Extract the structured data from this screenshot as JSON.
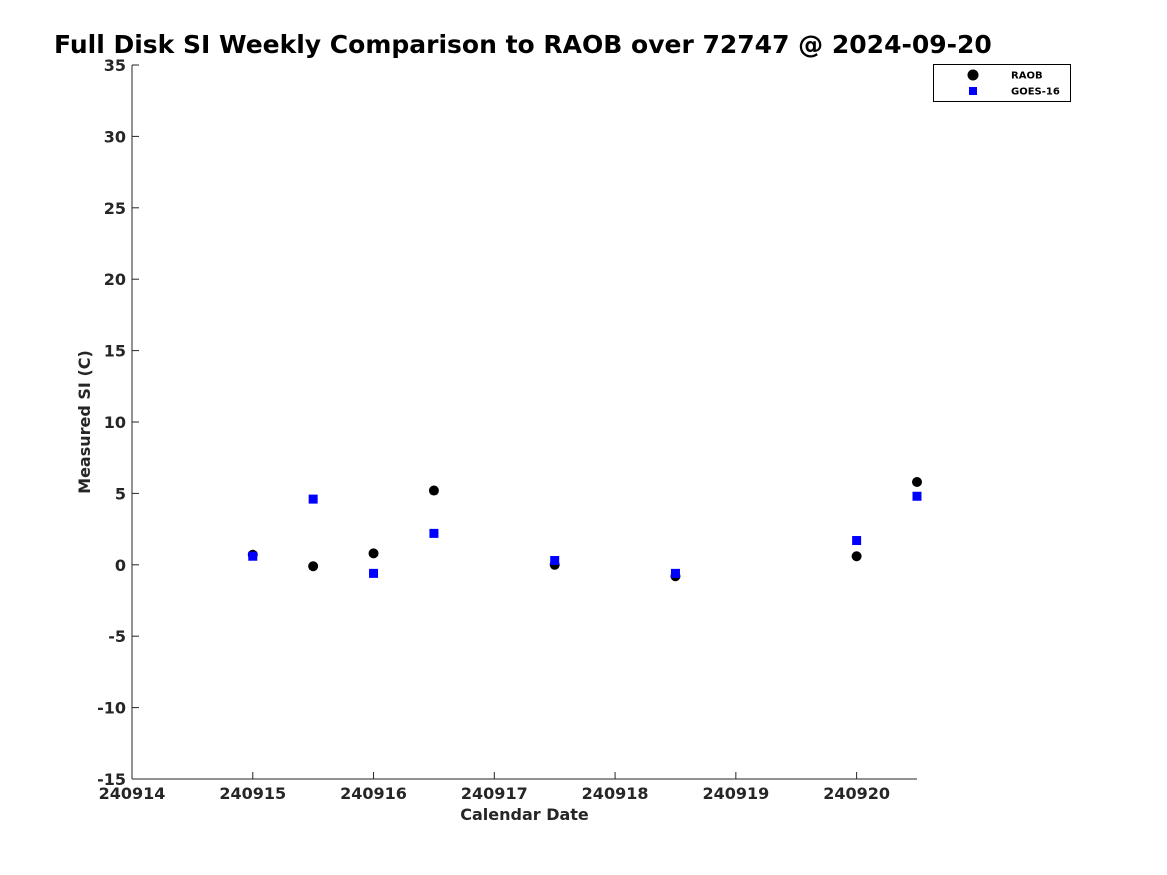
{
  "chart_data": {
    "type": "scatter",
    "title": "Full Disk SI Weekly Comparison to RAOB over 72747 @ 2024-09-20",
    "xlabel": "Calendar Date",
    "ylabel": "Measured SI (C)",
    "xlim": [
      240914,
      240920.5
    ],
    "ylim": [
      -15,
      35
    ],
    "x_ticks": [
      240914,
      240915,
      240916,
      240917,
      240918,
      240919,
      240920
    ],
    "x_tick_labels": [
      "240914",
      "240915",
      "240916",
      "240917",
      "240918",
      "240919",
      "240920"
    ],
    "y_ticks": [
      -15,
      -10,
      -5,
      0,
      5,
      10,
      15,
      20,
      25,
      30,
      35
    ],
    "y_tick_labels": [
      "-15",
      "-10",
      "-5",
      "0",
      "5",
      "10",
      "15",
      "20",
      "25",
      "30",
      "35"
    ],
    "grid": false,
    "legend_position": "top-right",
    "series": [
      {
        "name": "RAOB",
        "marker": "circle",
        "color": "#000000",
        "x": [
          240915,
          240915.5,
          240916,
          240916.5,
          240917.5,
          240918.5,
          240920,
          240920.5
        ],
        "y": [
          0.7,
          -0.1,
          0.8,
          5.2,
          0.0,
          -0.8,
          0.6,
          5.8
        ]
      },
      {
        "name": "GOES-16",
        "marker": "square",
        "color": "#0000ff",
        "x": [
          240915,
          240915.5,
          240916,
          240916.5,
          240917.5,
          240918.5,
          240920,
          240920.5
        ],
        "y": [
          0.6,
          4.6,
          -0.6,
          2.2,
          0.3,
          -0.6,
          1.7,
          4.8
        ]
      }
    ]
  }
}
